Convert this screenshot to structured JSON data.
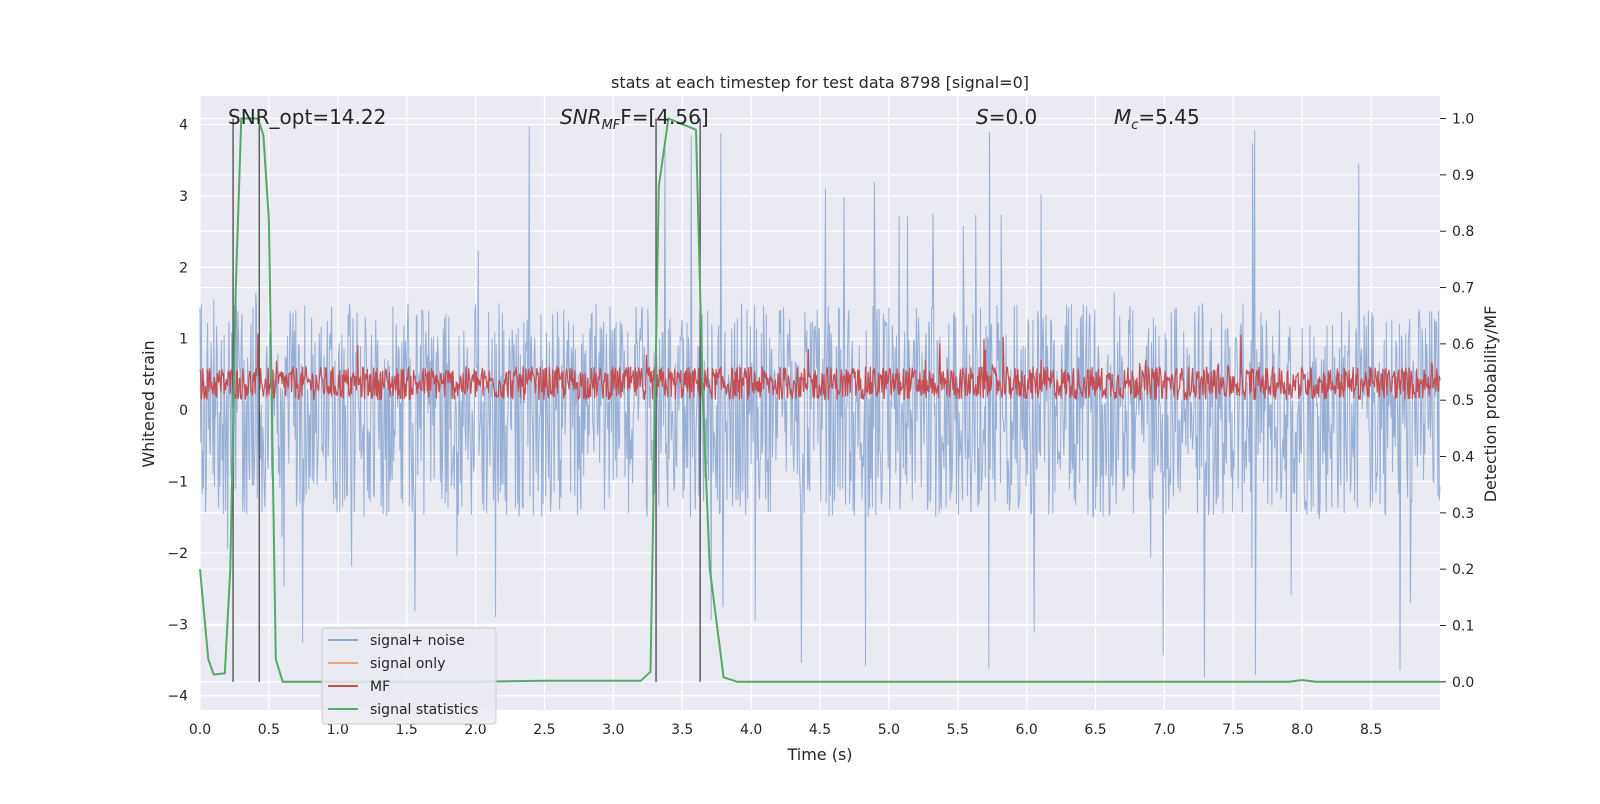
{
  "chart_data": {
    "type": "line",
    "title": "stats at each timestep for test data 8798 [signal=0]",
    "xlabel": "Time (s)",
    "ylabel_left": "Whitened strain",
    "ylabel_right": "Detection probability/MF",
    "xlim": [
      0.0,
      9.0
    ],
    "ylim_left": [
      -4.2,
      4.4
    ],
    "ylim_right": [
      -0.05,
      1.04
    ],
    "grid": true,
    "legend_placement": "lower-left",
    "x_ticks": [
      "0.0",
      "0.5",
      "1.0",
      "1.5",
      "2.0",
      "2.5",
      "3.0",
      "3.5",
      "4.0",
      "4.5",
      "5.0",
      "5.5",
      "6.0",
      "6.5",
      "7.0",
      "7.5",
      "8.0",
      "8.5"
    ],
    "y_ticks_left": [
      "4",
      "3",
      "2",
      "1",
      "0",
      "−1",
      "−2",
      "−3",
      "−4"
    ],
    "y_ticks_right": [
      "1.0",
      "0.9",
      "0.8",
      "0.7",
      "0.6",
      "0.5",
      "0.4",
      "0.3",
      "0.2",
      "0.1",
      "0.0"
    ],
    "annotations": {
      "snr_opt": "SNR_opt=14.22",
      "snr_mf_main": "SNR",
      "snr_mf_sub": "MF",
      "snr_mf_rest": "F=[4.56]",
      "s_main": "S",
      "s_rest": "=0.0",
      "mc_main": "M",
      "mc_sub": "c",
      "mc_rest": "=5.45"
    },
    "vertical_lines_x": [
      0.24,
      0.43,
      3.31,
      3.63
    ],
    "series": [
      {
        "name": "signal+ noise",
        "color": "#8fa8d2",
        "axis": "left",
        "noise_band": {
          "low_typical": -1.5,
          "high_typical": 1.5,
          "peak_high": 4.0,
          "peak_low": -3.8
        }
      },
      {
        "name": "signal only",
        "color": "#e8a37f",
        "axis": "left",
        "values": []
      },
      {
        "name": "MF",
        "color": "#c44e52",
        "axis": "right",
        "band": {
          "low": 0.5,
          "typical_high": 0.56,
          "peak": 0.62
        }
      },
      {
        "name": "signal statistics",
        "color": "#55a868",
        "axis": "right",
        "x": [
          0.0,
          0.06,
          0.1,
          0.18,
          0.22,
          0.26,
          0.3,
          0.35,
          0.42,
          0.46,
          0.5,
          0.55,
          0.6,
          0.7,
          1.0,
          2.0,
          2.5,
          3.0,
          3.2,
          3.27,
          3.33,
          3.4,
          3.6,
          3.65,
          3.7,
          3.8,
          3.9,
          5.0,
          7.9,
          8.0,
          8.1,
          9.0
        ],
        "y": [
          0.2,
          0.04,
          0.013,
          0.015,
          0.2,
          0.7,
          1.0,
          1.0,
          1.0,
          0.97,
          0.82,
          0.04,
          0.0,
          0.0,
          0.0,
          0.0,
          0.002,
          0.002,
          0.002,
          0.018,
          0.88,
          1.0,
          0.98,
          0.5,
          0.2,
          0.008,
          0.0,
          0.0,
          0.0,
          0.003,
          0.0,
          0.0
        ]
      }
    ]
  }
}
